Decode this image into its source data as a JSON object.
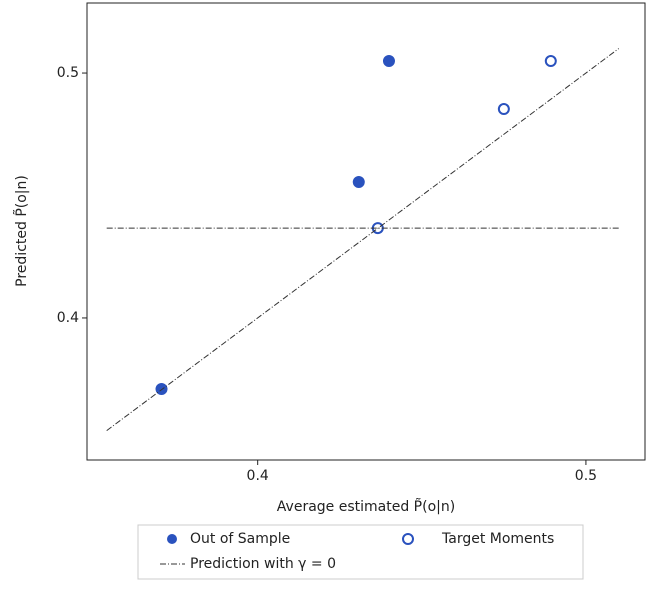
{
  "chart_data": {
    "type": "scatter",
    "xlabel": "Average estimated P̃(o|n)",
    "ylabel": "Predicted P̃(o|n)",
    "xlim": [
      0.348,
      0.518
    ],
    "ylim": [
      0.342,
      0.5286
    ],
    "xticks": [
      0.4,
      0.5
    ],
    "yticks": [
      0.4,
      0.5
    ],
    "series": [
      {
        "name": "Out of Sample",
        "color": "#2a52be",
        "marker": "filled",
        "x": [
          0.3707,
          0.4308,
          0.44
        ],
        "values": [
          0.371,
          0.4555,
          0.5049
        ]
      },
      {
        "name": "Target Moments",
        "color": "#2a52be",
        "marker": "hollow",
        "x": [
          0.4366,
          0.475,
          0.4893
        ],
        "values": [
          0.4367,
          0.4853,
          0.5049
        ]
      },
      {
        "name": "Prediction with γ = 0",
        "color": "#333333",
        "line": "dashdot",
        "x": [
          0.354,
          0.51
        ],
        "values": [
          0.4367,
          0.4367
        ]
      },
      {
        "color": "#333333",
        "line": "dashdot",
        "x": [
          0.354,
          0.51
        ],
        "values": [
          0.354,
          0.51
        ]
      }
    ]
  }
}
